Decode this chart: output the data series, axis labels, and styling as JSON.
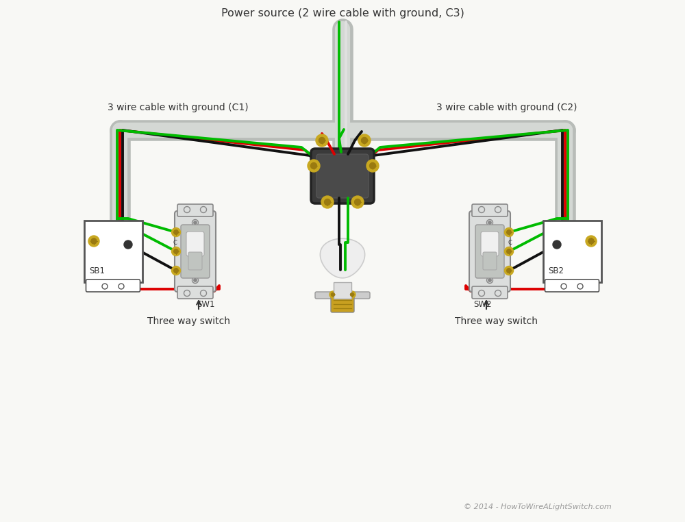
{
  "title": "Power source (2 wire cable with ground, C3)",
  "copyright": "© 2014 - HowToWireALightSwitch.com",
  "label_c1": "3 wire cable with ground (C1)",
  "label_c2": "3 wire cable with ground (C2)",
  "label_sw1": "Three way switch",
  "label_sw2": "Three way switch",
  "bg_color": "#f8f8f5",
  "wire_red": "#dd0000",
  "wire_green": "#00bb00",
  "wire_black": "#111111",
  "wire_white": "#e0e0e0",
  "conduit_color": "#b8bcb8",
  "conduit_inner": "#d4d8d4",
  "box_color": "#e8eae8",
  "box_edge": "#555555",
  "switch_plate_color": "#d4d8d4",
  "switch_bg": "#c0c4c0",
  "switch_lever": "#e0e4e0",
  "screw_color": "#c8a820",
  "screw_dark": "#9a7a10",
  "junction_fill": "#333333",
  "text_color": "#333333",
  "copyright_color": "#999999",
  "lw_wire": 2.8,
  "lw_conduit_outer": 22,
  "lw_conduit_inner": 16
}
